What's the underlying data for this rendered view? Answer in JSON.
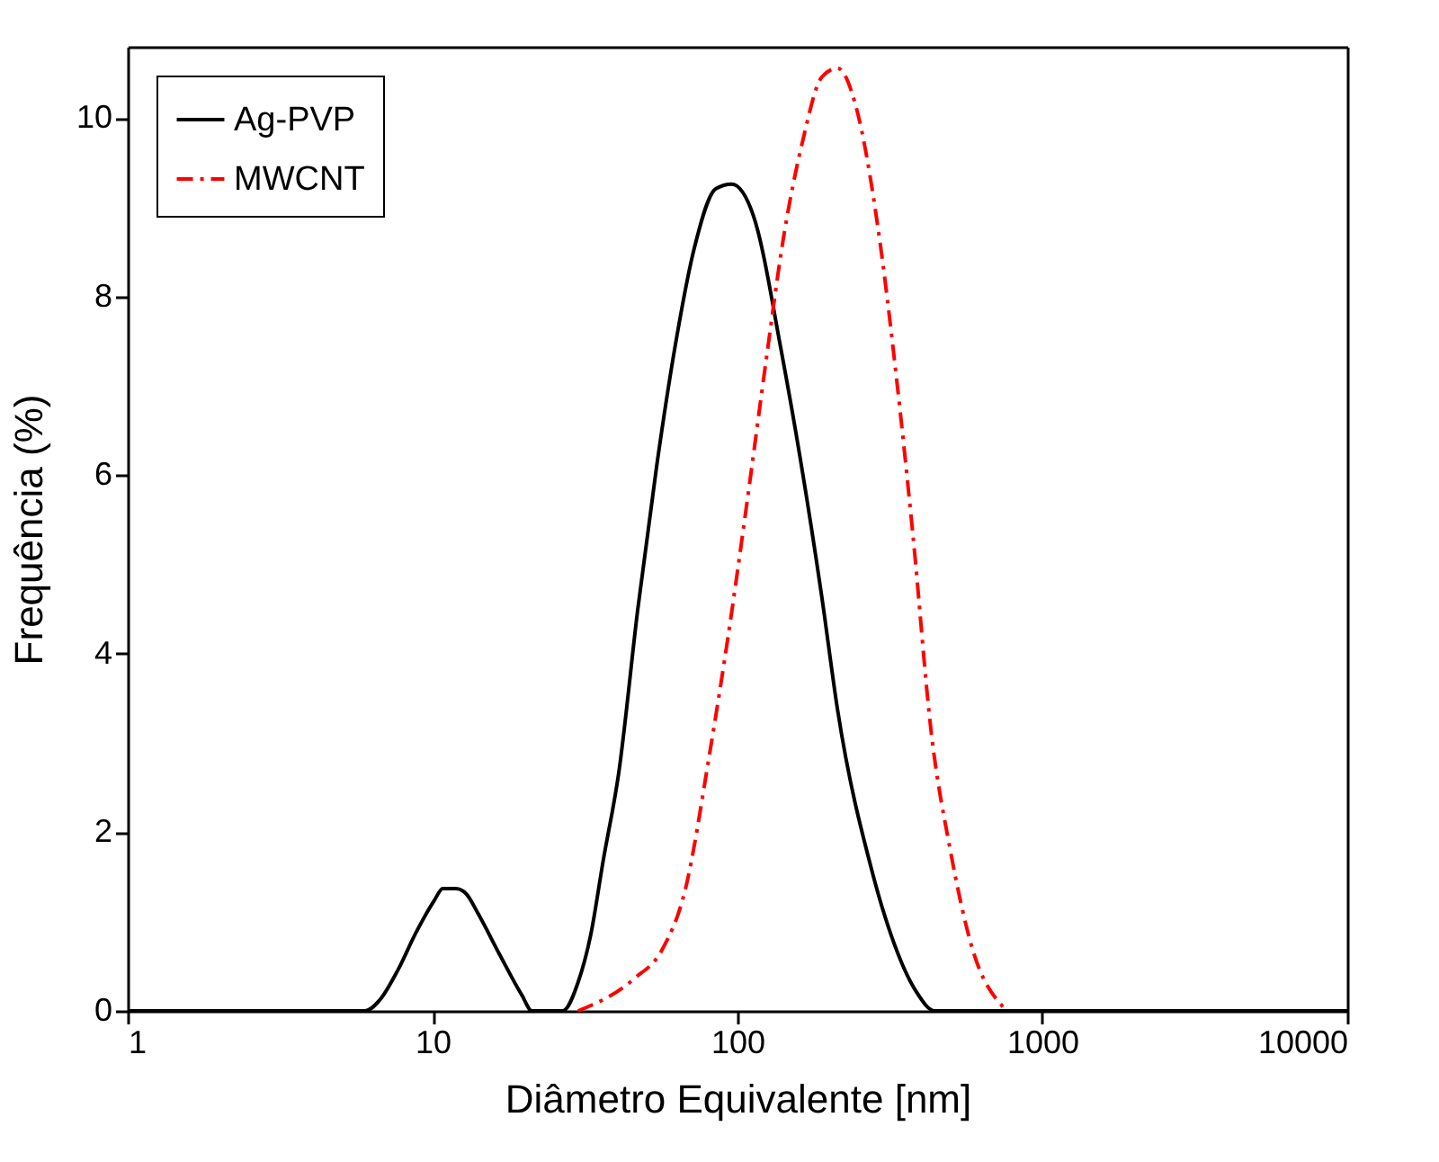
{
  "chart_data": {
    "type": "line",
    "xlabel": "Diâmetro Equivalente [nm]",
    "ylabel": "Frequência (%)",
    "log": "x",
    "xlim": [
      1,
      10000
    ],
    "xticks": [
      1,
      10,
      100,
      1000,
      10000
    ],
    "ylim": [
      0,
      10.8
    ],
    "yticks": [
      0,
      2,
      4,
      6,
      8,
      10
    ],
    "grid": false,
    "legend": "top left",
    "marker": "none",
    "series": [
      {
        "name": "Ag-PVP",
        "color": "#000000",
        "line_style": "solid",
        "x": [
          1,
          6.0,
          6.7,
          7.7,
          8.8,
          10.1,
          10.8,
          11.9,
          12.9,
          14.1,
          16.6,
          19.6,
          21.2,
          26.7,
          30.0,
          33.0,
          36.3,
          40.8,
          47.1,
          54.3,
          62.4,
          72.0,
          85,
          95.7,
          112.7,
          139.6,
          189,
          213,
          277,
          319,
          385,
          444,
          10000
        ],
        "values": [
          0,
          0,
          0.12,
          0.46,
          0.87,
          1.23,
          1.37,
          1.37,
          1.31,
          1.09,
          0.63,
          0.18,
          0,
          0,
          0.32,
          0.85,
          1.69,
          2.67,
          4.5,
          6.1,
          7.44,
          8.53,
          9.21,
          9.26,
          8.91,
          7.37,
          4.64,
          3.37,
          1.55,
          0.85,
          0.22,
          0,
          0
        ]
      },
      {
        "name": "MWCNT",
        "color": "#ff0000",
        "line_style": "dashed",
        "x": [
          30,
          45.8,
          56.9,
          67.2,
          81.0,
          93.3,
          107.4,
          123.6,
          142.3,
          164,
          189,
          213,
          246,
          289,
          334,
          376,
          433,
          497,
          589,
          745
        ],
        "values": [
          0,
          0.36,
          0.7,
          1.34,
          2.88,
          4.21,
          5.69,
          7.24,
          8.71,
          9.76,
          10.46,
          10.56,
          10.1,
          8.77,
          7.02,
          5.34,
          3.09,
          1.83,
          0.7,
          0.04
        ]
      }
    ]
  }
}
